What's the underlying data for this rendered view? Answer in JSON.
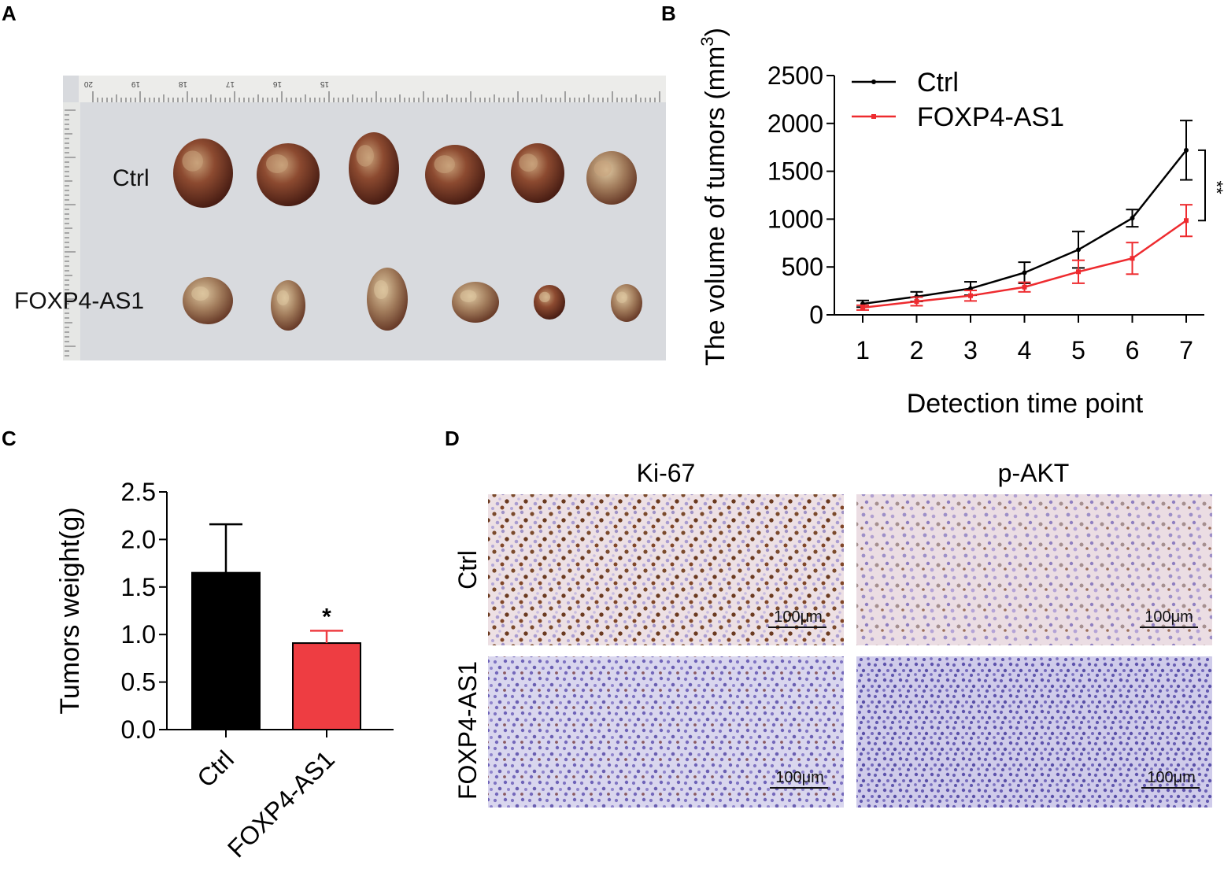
{
  "panels": {
    "A": {
      "letter": "A",
      "labels": {
        "top": "Ctrl",
        "bottom": "FOXP4-AS1"
      },
      "ruler_numbers": [
        "20",
        "19",
        "18",
        "17",
        "16",
        "15"
      ]
    },
    "B": {
      "letter": "B"
    },
    "C": {
      "letter": "C"
    },
    "D": {
      "letter": "D",
      "columns": [
        "Ki-67",
        "p-AKT"
      ],
      "rows": [
        "Ctrl",
        "FOXP4-AS1"
      ],
      "scale_bar": "100μm"
    }
  },
  "chart_data": [
    {
      "id": "B",
      "type": "line",
      "xlabel": "Detection time point",
      "ylabel": "The volume of tumors (mm",
      "ylabel_sup": "3",
      "ylabel_close": ")",
      "x": [
        1,
        2,
        3,
        4,
        5,
        6,
        7
      ],
      "ylim": [
        0,
        2500
      ],
      "yticks": [
        0,
        500,
        1000,
        1500,
        2000,
        2500
      ],
      "legend_position": "top-left",
      "series": [
        {
          "name": "Ctrl",
          "color": "#000000",
          "values": [
            115,
            190,
            275,
            440,
            680,
            1010,
            1720
          ],
          "errors": [
            35,
            50,
            70,
            110,
            190,
            90,
            310
          ]
        },
        {
          "name": "FOXP4-AS1",
          "color": "#ee2b2f",
          "values": [
            75,
            140,
            200,
            290,
            450,
            590,
            985
          ],
          "errors": [
            25,
            45,
            55,
            50,
            120,
            165,
            165
          ]
        }
      ],
      "annotation": "**"
    },
    {
      "id": "C",
      "type": "bar",
      "ylabel": "Tumors weight(g)",
      "categories": [
        "Ctrl",
        "FOXP4-AS1"
      ],
      "values": [
        1.65,
        0.91
      ],
      "errors": [
        0.51,
        0.13
      ],
      "colors": [
        "#000000",
        "#ee3d42"
      ],
      "ylim": [
        0,
        2.5
      ],
      "yticks": [
        "0.0",
        "0.5",
        "1.0",
        "1.5",
        "2.0",
        "2.5"
      ],
      "annotation": "*"
    }
  ]
}
